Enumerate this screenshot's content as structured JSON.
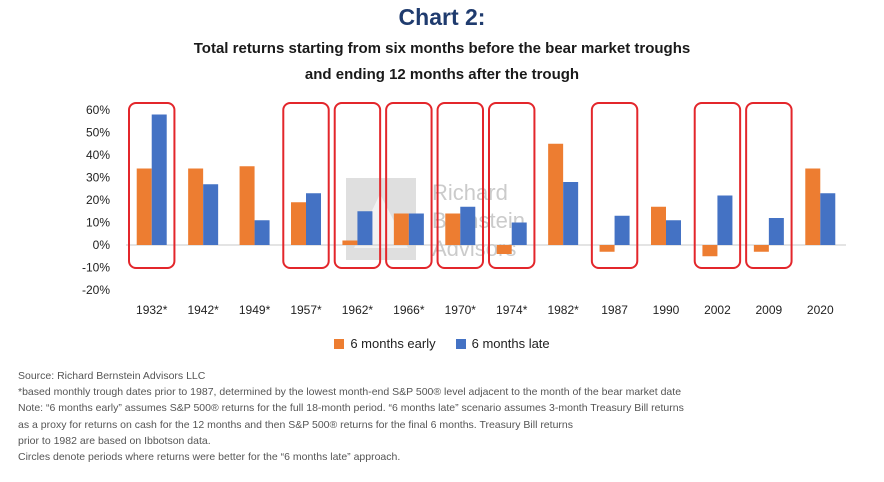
{
  "title": "Chart 2:",
  "subtitle_lines": [
    "Total returns starting from six months before the bear market troughs",
    "and ending 12 months after the trough"
  ],
  "colors": {
    "early": "#ed7d31",
    "late": "#4472c4",
    "highlight": "#e3262b",
    "title": "#1f3b6e"
  },
  "watermark": [
    "Richard",
    "Bernstein",
    "Advisors"
  ],
  "chart_data": {
    "type": "bar",
    "categories": [
      "1932*",
      "1942*",
      "1949*",
      "1957*",
      "1962*",
      "1966*",
      "1970*",
      "1974*",
      "1982*",
      "1987",
      "1990",
      "2002",
      "2009",
      "2020"
    ],
    "series": [
      {
        "name": "6 months early",
        "values": [
          34,
          34,
          35,
          19,
          2,
          14,
          14,
          -4,
          45,
          -3,
          17,
          -5,
          -3,
          34
        ]
      },
      {
        "name": "6 months late",
        "values": [
          58,
          27,
          11,
          23,
          15,
          14,
          17,
          10,
          28,
          13,
          11,
          22,
          12,
          23
        ]
      }
    ],
    "ylim": [
      -20,
      60
    ],
    "yticks": [
      "60%",
      "50%",
      "40%",
      "30%",
      "20%",
      "10%",
      "0%",
      "-10%",
      "-20%"
    ],
    "ytick_values": [
      60,
      50,
      40,
      30,
      20,
      10,
      0,
      -10,
      -20
    ],
    "highlighted": [
      "1932*",
      "1957*",
      "1962*",
      "1966*",
      "1970*",
      "1974*",
      "1987",
      "2002",
      "2009"
    ],
    "legend_position": "bottom"
  },
  "notes": [
    "Source: Richard Bernstein Advisors LLC",
    "*based monthly trough dates prior to 1987, determined by the lowest month-end S&P 500® level adjacent to the month of the bear market date",
    "Note: “6 months early” assumes S&P 500® returns for the full 18-month period. “6 months late” scenario assumes 3-month Treasury Bill returns",
    "as a proxy for returns on cash for the 12 months and then S&P 500® returns for the final 6 months. Treasury Bill returns",
    "prior to 1982 are based on Ibbotson data.",
    "Circles denote periods where returns were better for the “6 months late” approach."
  ]
}
